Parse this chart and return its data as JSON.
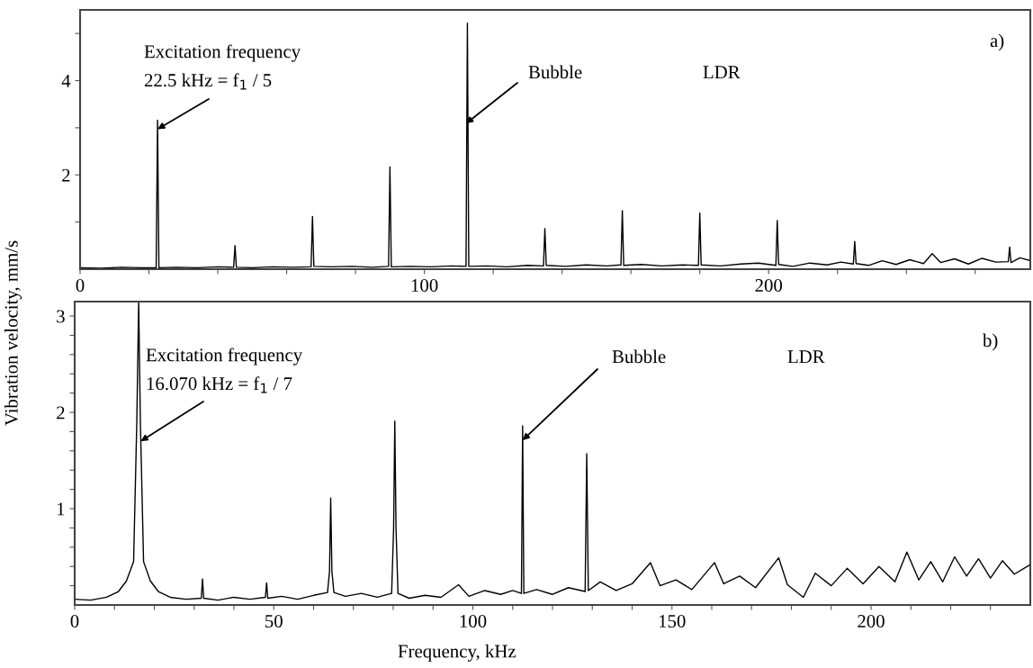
{
  "chart_data": [
    {
      "type": "line",
      "ylabel": null,
      "xlim": [
        0,
        276
      ],
      "ylim": [
        0,
        5.5
      ],
      "xticks": [
        0,
        {
          "value": 20,
          "label": null
        },
        {
          "value": 40,
          "label": null
        },
        {
          "value": 60,
          "label": null
        },
        {
          "value": 80,
          "label": null
        },
        100,
        {
          "value": 120,
          "label": null
        },
        {
          "value": 140,
          "label": null
        },
        {
          "value": 160,
          "label": null
        },
        {
          "value": 180,
          "label": null
        },
        200,
        {
          "value": 220,
          "label": null
        },
        {
          "value": 240,
          "label": null
        },
        {
          "value": 260,
          "label": null
        }
      ],
      "yticks": [
        {
          "value": 1,
          "label": null
        },
        2,
        {
          "value": 3,
          "label": null
        },
        4,
        {
          "value": 5,
          "label": null
        }
      ],
      "grid": false,
      "series": [
        {
          "color": "#000000",
          "x": [
            0,
            6,
            12,
            18,
            22.1,
            22.5,
            22.9,
            28,
            34,
            40,
            44.6,
            45,
            45.4,
            50,
            56,
            62,
            67.1,
            67.5,
            67.9,
            73,
            79,
            85,
            89.6,
            90,
            90.4,
            96,
            102,
            108,
            112.1,
            112.5,
            112.9,
            118,
            124,
            130,
            134.6,
            135,
            135.4,
            141,
            147,
            153,
            157.1,
            157.5,
            157.9,
            163,
            169,
            175,
            179.6,
            180,
            180.4,
            186,
            192,
            197,
            202.1,
            202.5,
            202.9,
            207,
            212,
            217,
            221,
            224.6,
            225,
            225.4,
            229,
            233,
            237,
            241,
            245,
            247.5,
            250,
            254,
            258,
            262,
            266,
            269.6,
            270,
            270.4,
            273,
            276
          ],
          "values": [
            0.03,
            0.02,
            0.04,
            0.03,
            0.03,
            3.16,
            0.03,
            0.04,
            0.03,
            0.05,
            0.04,
            0.5,
            0.04,
            0.03,
            0.05,
            0.04,
            0.05,
            1.12,
            0.06,
            0.05,
            0.06,
            0.04,
            0.06,
            2.17,
            0.05,
            0.06,
            0.05,
            0.07,
            0.06,
            5.22,
            0.06,
            0.07,
            0.05,
            0.08,
            0.07,
            0.86,
            0.08,
            0.06,
            0.09,
            0.07,
            0.09,
            1.24,
            0.08,
            0.1,
            0.07,
            0.09,
            0.08,
            1.19,
            0.09,
            0.07,
            0.11,
            0.13,
            0.08,
            1.03,
            0.1,
            0.06,
            0.13,
            0.09,
            0.15,
            0.11,
            0.59,
            0.12,
            0.08,
            0.18,
            0.1,
            0.2,
            0.12,
            0.33,
            0.14,
            0.22,
            0.11,
            0.23,
            0.15,
            0.16,
            0.47,
            0.14,
            0.24,
            0.18
          ]
        }
      ],
      "annotations": [
        {
          "text": "Excitation frequency\n22.5 kHz = f$_{1}$ / 5",
          "x": 22.5,
          "y": 2.97
        },
        {
          "text": "Bubble",
          "x": 112.1,
          "y": 3.09
        },
        "LDR",
        "a)"
      ]
    },
    {
      "type": "line",
      "xlabel": "Frequency, kHz",
      "ylabel": "Vibration velocity, mm/s",
      "xlim": [
        0,
        240
      ],
      "ylim": [
        0,
        3.15
      ],
      "xticks": [
        0,
        {
          "value": 10,
          "label": null
        },
        {
          "value": 20,
          "label": null
        },
        {
          "value": 30,
          "label": null
        },
        {
          "value": 40,
          "label": null
        },
        50,
        {
          "value": 60,
          "label": null
        },
        {
          "value": 70,
          "label": null
        },
        {
          "value": 80,
          "label": null
        },
        {
          "value": 90,
          "label": null
        },
        100,
        {
          "value": 110,
          "label": null
        },
        {
          "value": 120,
          "label": null
        },
        {
          "value": 130,
          "label": null
        },
        {
          "value": 140,
          "label": null
        },
        150,
        {
          "value": 160,
          "label": null
        },
        {
          "value": 170,
          "label": null
        },
        {
          "value": 180,
          "label": null
        },
        {
          "value": 190,
          "label": null
        },
        200,
        {
          "value": 210,
          "label": null
        },
        {
          "value": 220,
          "label": null
        },
        {
          "value": 230,
          "label": null
        }
      ],
      "yticks": [
        {
          "value": 0.2,
          "label": null
        },
        {
          "value": 0.4,
          "label": null
        },
        {
          "value": 0.6,
          "label": null
        },
        {
          "value": 0.8,
          "label": null
        },
        1,
        {
          "value": 1.2,
          "label": null
        },
        {
          "value": 1.4,
          "label": null
        },
        {
          "value": 1.6,
          "label": null
        },
        {
          "value": 1.8,
          "label": null
        },
        2,
        {
          "value": 2.2,
          "label": null
        },
        {
          "value": 2.4,
          "label": null
        },
        {
          "value": 2.6,
          "label": null
        },
        {
          "value": 2.8,
          "label": null
        },
        3
      ],
      "grid": false,
      "series": [
        {
          "color": "#000000",
          "x": [
            0,
            4,
            8,
            11,
            13,
            14.8,
            15.6,
            16.07,
            16.5,
            17.3,
            19,
            21,
            24,
            28,
            31.8,
            32.1,
            32.4,
            36,
            40,
            44,
            47.9,
            48.2,
            48.5,
            52,
            56,
            60,
            63.5,
            64,
            64.3,
            64.6,
            65.1,
            68,
            72,
            76,
            79.6,
            80.1,
            80.4,
            80.7,
            81.2,
            84,
            88,
            92,
            96.4,
            99,
            103,
            107,
            110,
            112.2,
            112.5,
            112.8,
            116,
            120,
            124,
            128.2,
            128.6,
            129,
            132,
            136,
            140,
            144.6,
            147,
            151,
            155,
            160.7,
            163,
            167,
            171,
            176.8,
            179,
            183,
            186,
            190,
            194,
            198,
            202,
            206,
            209,
            212,
            215,
            218,
            221,
            224,
            227,
            230,
            233,
            236,
            240
          ],
          "values": [
            0.06,
            0.05,
            0.08,
            0.14,
            0.25,
            0.45,
            1.9,
            3.15,
            1.9,
            0.45,
            0.25,
            0.14,
            0.08,
            0.06,
            0.07,
            0.27,
            0.07,
            0.05,
            0.08,
            0.06,
            0.08,
            0.23,
            0.07,
            0.09,
            0.06,
            0.1,
            0.13,
            0.35,
            1.11,
            0.35,
            0.13,
            0.09,
            0.12,
            0.08,
            0.12,
            0.8,
            1.91,
            0.8,
            0.12,
            0.07,
            0.1,
            0.08,
            0.21,
            0.09,
            0.15,
            0.11,
            0.15,
            0.12,
            1.86,
            0.12,
            0.16,
            0.11,
            0.18,
            0.14,
            1.57,
            0.15,
            0.24,
            0.15,
            0.22,
            0.44,
            0.2,
            0.26,
            0.16,
            0.44,
            0.22,
            0.3,
            0.18,
            0.49,
            0.21,
            0.08,
            0.33,
            0.2,
            0.38,
            0.22,
            0.4,
            0.24,
            0.55,
            0.26,
            0.45,
            0.24,
            0.5,
            0.3,
            0.48,
            0.28,
            0.46,
            0.32,
            0.42
          ]
        }
      ],
      "annotations": [
        {
          "text": "Excitation frequency\n16.070 kHz = f$_{1}$ / 7",
          "x": 16.6,
          "y": 1.7
        },
        {
          "text": "Bubble",
          "x": 112.5,
          "y": 1.71
        },
        "LDR",
        "b)"
      ]
    }
  ]
}
